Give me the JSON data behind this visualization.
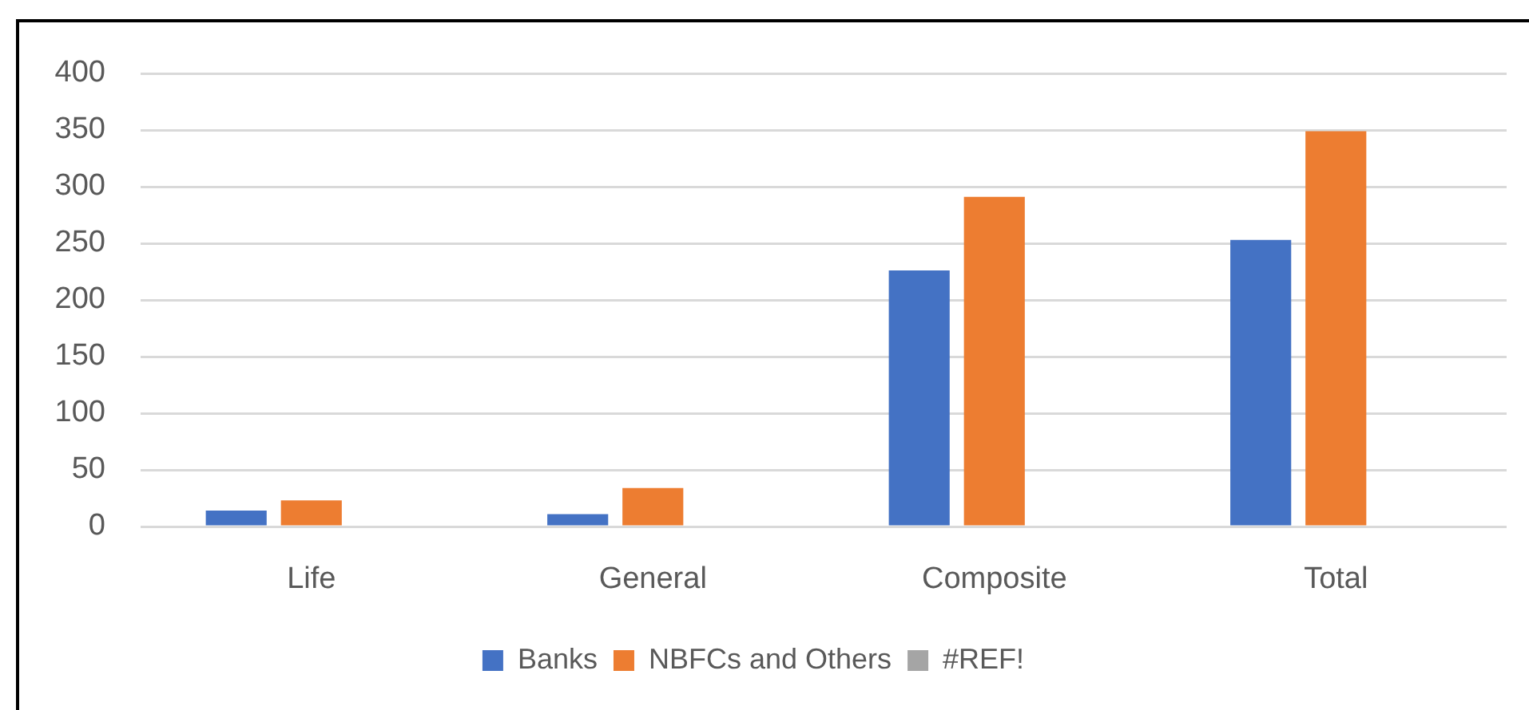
{
  "chart_data": {
    "type": "bar",
    "categories": [
      "Life",
      "General",
      "Composite",
      "Total"
    ],
    "series": [
      {
        "name": "Banks",
        "color": "#4472c4",
        "values": [
          14,
          11,
          226,
          253
        ]
      },
      {
        "name": "NBFCs and Others",
        "color": "#ed7d31",
        "values": [
          23,
          34,
          291,
          349
        ]
      },
      {
        "name": "#REF!",
        "color": "#a5a5a5",
        "values": [
          null,
          null,
          null,
          null
        ]
      }
    ],
    "ylim": [
      0,
      400
    ],
    "yticks": [
      0,
      50,
      100,
      150,
      200,
      250,
      300,
      350,
      400
    ],
    "grid": "y",
    "legend": "bottom"
  }
}
